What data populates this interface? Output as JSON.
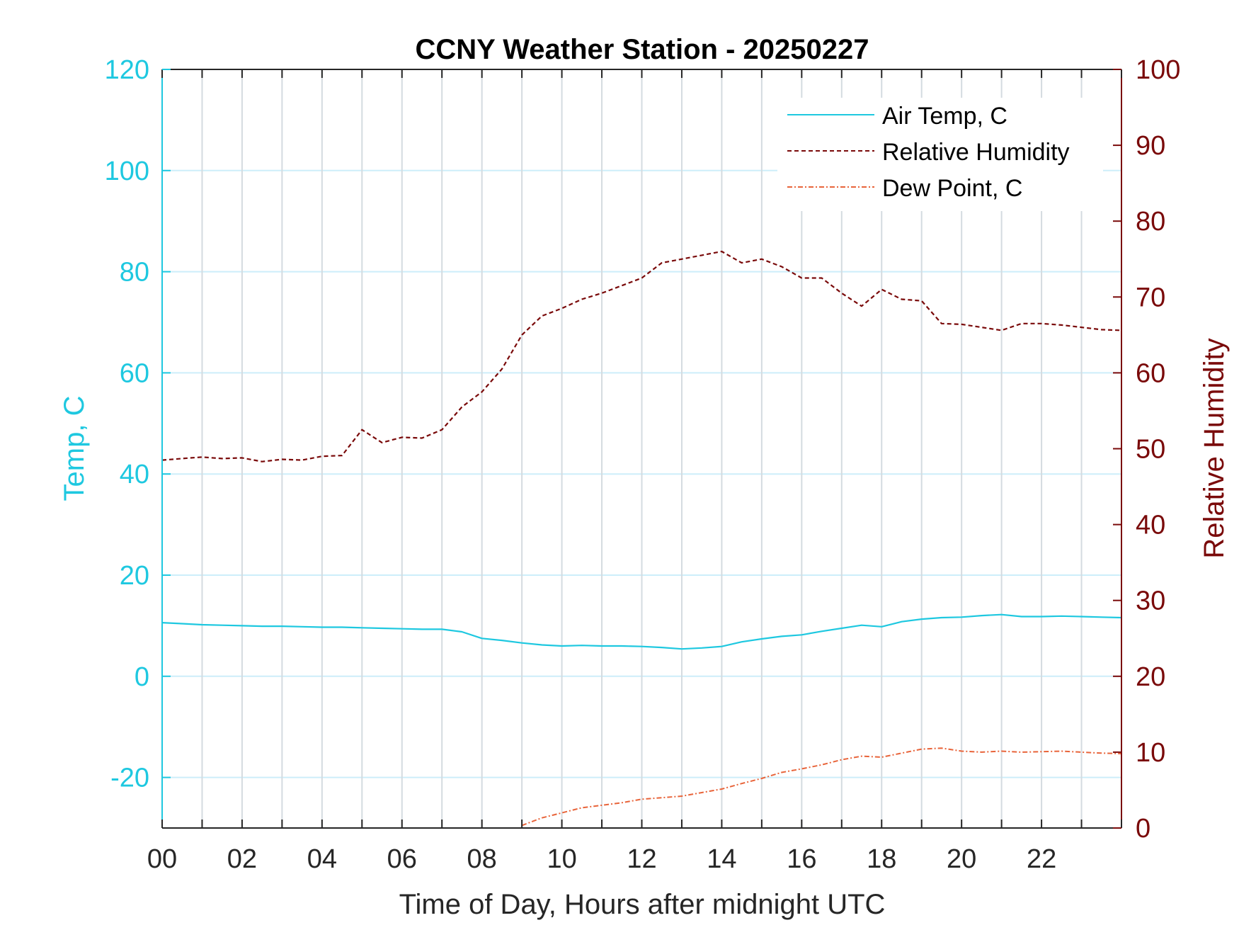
{
  "chart_data": {
    "type": "line",
    "title": "CCNY Weather Station - 20250227",
    "xlabel": "Time of Day, Hours after midnight UTC",
    "ylabel_left": "Temp, C",
    "ylabel_right": "Relative Humidity",
    "xlim": [
      0,
      24
    ],
    "ylim_left": [
      -30,
      120
    ],
    "ylim_right": [
      0,
      100
    ],
    "x_ticks": [
      "00",
      "02",
      "04",
      "06",
      "08",
      "10",
      "12",
      "14",
      "16",
      "18",
      "20",
      "22"
    ],
    "y_ticks_left": [
      "-20",
      "0",
      "20",
      "40",
      "60",
      "80",
      "100",
      "120"
    ],
    "y_ticks_right": [
      "0",
      "10",
      "20",
      "30",
      "40",
      "50",
      "60",
      "70",
      "80",
      "90",
      "100"
    ],
    "grid": "vertical lines every hour, horizontal lines at left ticks",
    "legend_position": "top-right",
    "colors": {
      "air_temp": "#1ec8e0",
      "humidity": "#7a0a0a",
      "dew_point": "#e8643a",
      "grid": "#d4dbe0",
      "hgrid": "#cdeefa"
    },
    "series": [
      {
        "name": "Air Temp, C",
        "axis": "left",
        "style": "solid",
        "x": [
          0,
          0.5,
          1,
          1.5,
          2,
          2.5,
          3,
          3.5,
          4,
          4.5,
          5,
          5.5,
          6,
          6.5,
          7,
          7.5,
          8,
          8.5,
          9,
          9.5,
          10,
          10.5,
          11,
          11.5,
          12,
          12.5,
          13,
          13.5,
          14,
          14.5,
          15,
          15.5,
          16,
          16.5,
          17,
          17.5,
          18,
          18.5,
          19,
          19.5,
          20,
          20.5,
          21,
          21.5,
          22,
          22.5,
          23,
          23.5,
          24
        ],
        "y": [
          10.6,
          10.4,
          10.2,
          10.1,
          10.0,
          9.9,
          9.9,
          9.8,
          9.7,
          9.7,
          9.6,
          9.5,
          9.4,
          9.3,
          9.3,
          8.8,
          7.5,
          7.1,
          6.6,
          6.2,
          6.0,
          6.1,
          6.0,
          6.0,
          5.9,
          5.7,
          5.4,
          5.6,
          5.9,
          6.8,
          7.4,
          7.9,
          8.2,
          8.9,
          9.5,
          10.1,
          9.8,
          10.8,
          11.3,
          11.6,
          11.7,
          12.0,
          12.2,
          11.8,
          11.8,
          11.9,
          11.8,
          11.7,
          11.6
        ]
      },
      {
        "name": "Relative Humidity",
        "axis": "right",
        "style": "dashed",
        "x": [
          0,
          0.5,
          1,
          1.5,
          2,
          2.5,
          3,
          3.5,
          4,
          4.5,
          5,
          5.5,
          6,
          6.5,
          7,
          7.5,
          8,
          8.5,
          9,
          9.5,
          10,
          10.5,
          11,
          11.5,
          12,
          12.5,
          13,
          13.5,
          14,
          14.5,
          15,
          15.5,
          16,
          16.5,
          17,
          17.5,
          18,
          18.5,
          19,
          19.5,
          20,
          20.5,
          21,
          21.5,
          22,
          22.5,
          23,
          23.5,
          24
        ],
        "y": [
          48.5,
          48.7,
          48.9,
          48.7,
          48.8,
          48.3,
          48.6,
          48.5,
          49.0,
          49.1,
          52.5,
          50.8,
          51.5,
          51.4,
          52.5,
          55.5,
          57.5,
          60.5,
          65.0,
          67.5,
          68.5,
          69.7,
          70.5,
          71.5,
          72.5,
          74.5,
          75.0,
          75.5,
          76.0,
          74.5,
          75.0,
          74.0,
          72.5,
          72.5,
          70.5,
          68.8,
          71.0,
          69.7,
          69.5,
          66.5,
          66.4,
          66.0,
          65.6,
          66.5,
          66.5,
          66.3,
          66.0,
          65.7,
          65.6
        ]
      },
      {
        "name": "Dew Point, C",
        "axis": "left",
        "style": "dash-dot",
        "x": [
          9,
          9.5,
          10,
          10.5,
          11,
          11.5,
          12,
          12.5,
          13,
          13.5,
          14,
          14.5,
          15,
          15.5,
          16,
          16.5,
          17,
          17.5,
          18,
          18.5,
          19,
          19.5,
          20,
          20.5,
          21,
          21.5,
          22,
          22.5,
          23,
          23.5,
          24
        ],
        "y": [
          -29.5,
          -28.0,
          -27.0,
          -26.0,
          -25.5,
          -25.0,
          -24.3,
          -24.0,
          -23.7,
          -23.0,
          -22.3,
          -21.2,
          -20.2,
          -19.0,
          -18.3,
          -17.5,
          -16.5,
          -15.8,
          -16.0,
          -15.2,
          -14.4,
          -14.2,
          -14.8,
          -15.0,
          -14.8,
          -15.0,
          -14.9,
          -14.8,
          -15.0,
          -15.2,
          -15.3
        ]
      }
    ]
  }
}
